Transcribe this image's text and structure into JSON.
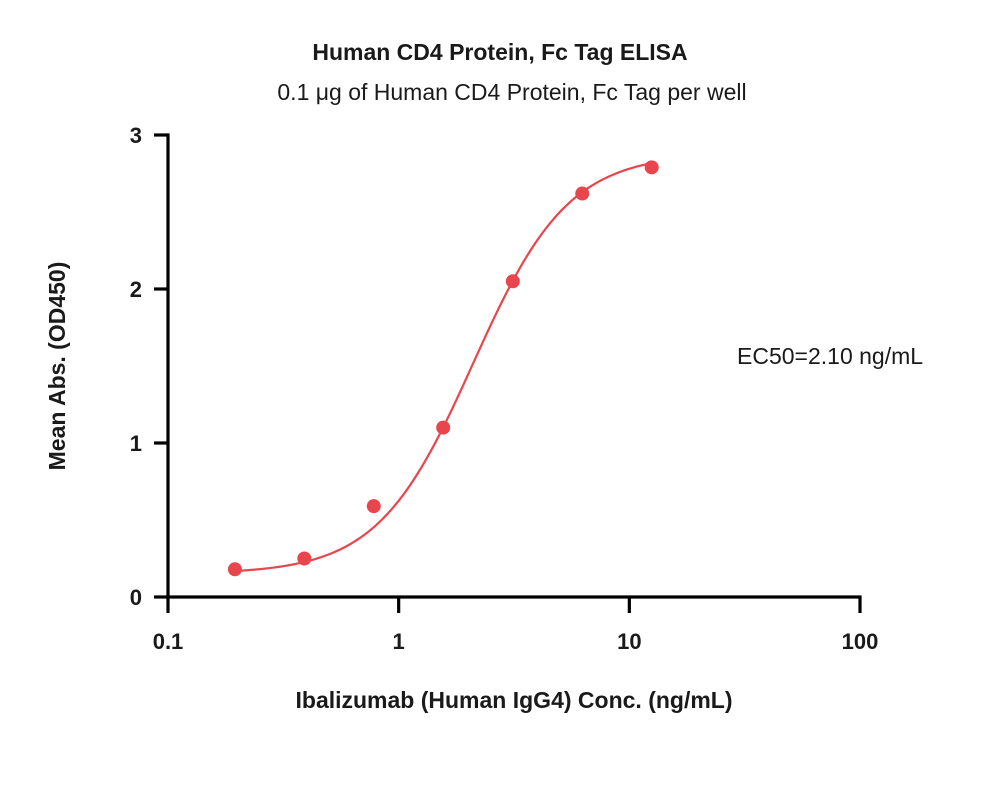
{
  "chart_data": {
    "type": "scatter",
    "title": "Human CD4 Protein, Fc Tag ELISA",
    "subtitle": "0.1 μg of Human CD4 Protein, Fc Tag per well",
    "xlabel": "Ibalizumab (Human IgG4) Conc. (ng/mL)",
    "ylabel": "Mean Abs. (OD450)",
    "xscale": "log",
    "xlim": [
      0.1,
      100
    ],
    "ylim": [
      0,
      3
    ],
    "xticks": [
      "0.1",
      "1",
      "10",
      "100"
    ],
    "yticks": [
      "0",
      "1",
      "2",
      "3"
    ],
    "grid": false,
    "annotation": "EC50=2.10 ng/mL",
    "series": [
      {
        "x": [
          0.195,
          0.39,
          0.78,
          1.56,
          3.125,
          6.25,
          12.5
        ],
        "y": [
          0.18,
          0.25,
          0.59,
          1.1,
          2.05,
          2.62,
          2.79
        ]
      }
    ],
    "fit": {
      "type": "4PL",
      "bottom": 0.15,
      "top": 2.88,
      "ec50": 2.1,
      "hill": 2.1
    },
    "color": "#e8454d"
  }
}
